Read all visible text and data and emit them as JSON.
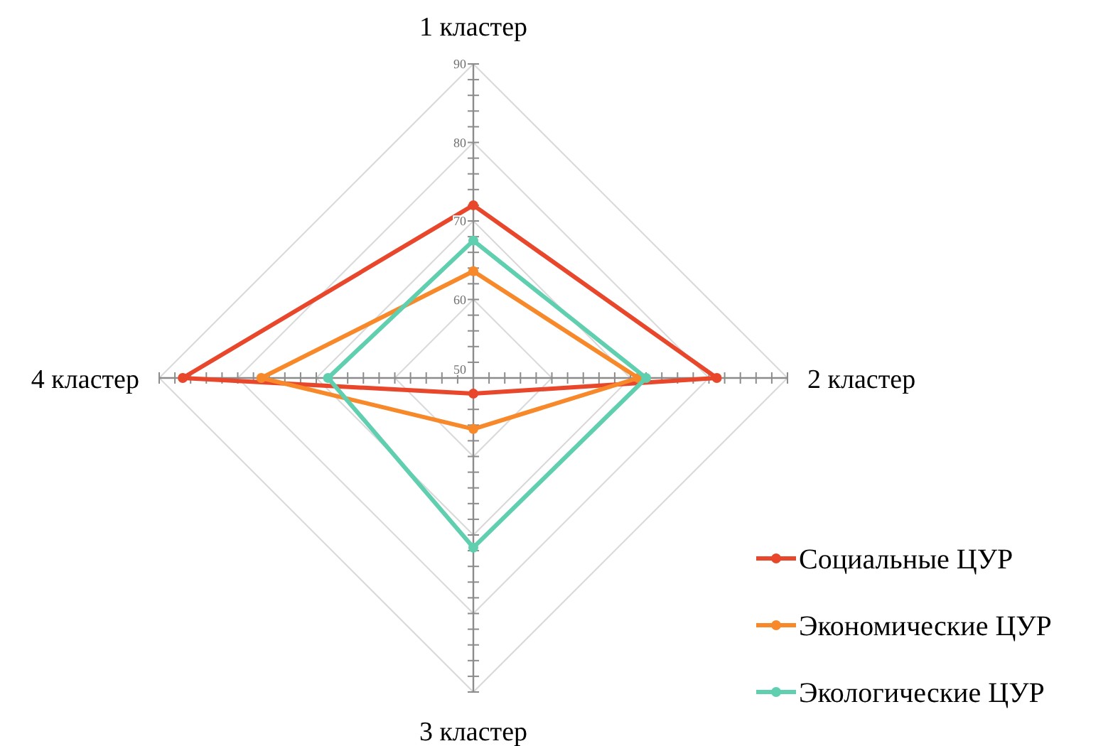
{
  "chart_data": {
    "type": "radar",
    "categories": [
      "1 кластер",
      "2 кластер",
      "3 кластер",
      "4 кластер"
    ],
    "ylim": [
      50,
      90
    ],
    "yticks": [
      50,
      60,
      70,
      80,
      90
    ],
    "grid": true,
    "legend": "bottom right",
    "marker": "circle",
    "series": [
      {
        "name": "Социальные ЦУР",
        "color": "#e8472b",
        "values": [
          72,
          81,
          52,
          87
        ]
      },
      {
        "name": "Экономические ЦУР",
        "color": "#f7892a",
        "values": [
          63.6,
          71,
          56.5,
          77
        ]
      },
      {
        "name": "Экологические ЦУР",
        "color": "#5fcfb0",
        "values": [
          67.5,
          72,
          71.6,
          68.5
        ]
      }
    ]
  }
}
